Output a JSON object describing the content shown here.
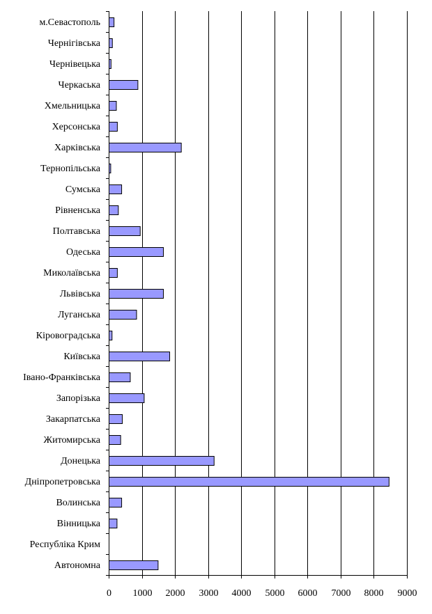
{
  "chart_data": {
    "type": "bar",
    "orientation": "horizontal",
    "title": "",
    "xlabel": "",
    "ylabel": "",
    "xlim": [
      0,
      9000
    ],
    "x_ticks": [
      0,
      1000,
      2000,
      3000,
      4000,
      5000,
      6000,
      7000,
      8000,
      9000
    ],
    "grid": true,
    "legend": "none",
    "bar_color": "#9999ff",
    "categories": [
      "м.Севастополь",
      "Чернігівська",
      "Чернівецька",
      "Черкаська",
      "Хмельницька",
      "Херсонська",
      "Харківська",
      "Тернопільська",
      "Сумська",
      "Рівненська",
      "Полтавська",
      "Одеська",
      "Миколаївська",
      "Львівська",
      "Луганська",
      "Кіровоградська",
      "Київська",
      "Івано-Франківська",
      "Запорізька",
      "Закарпатська",
      "Житомирська",
      "Донецька",
      "Дніпропетровська",
      "Волинська",
      "Вінницька",
      "Республіка Крим",
      "Автономна"
    ],
    "values": [
      150,
      100,
      60,
      870,
      220,
      250,
      2180,
      50,
      380,
      280,
      940,
      1640,
      250,
      1640,
      830,
      90,
      1830,
      640,
      1060,
      400,
      350,
      3170,
      8450,
      380,
      240,
      0,
      1480
    ]
  }
}
